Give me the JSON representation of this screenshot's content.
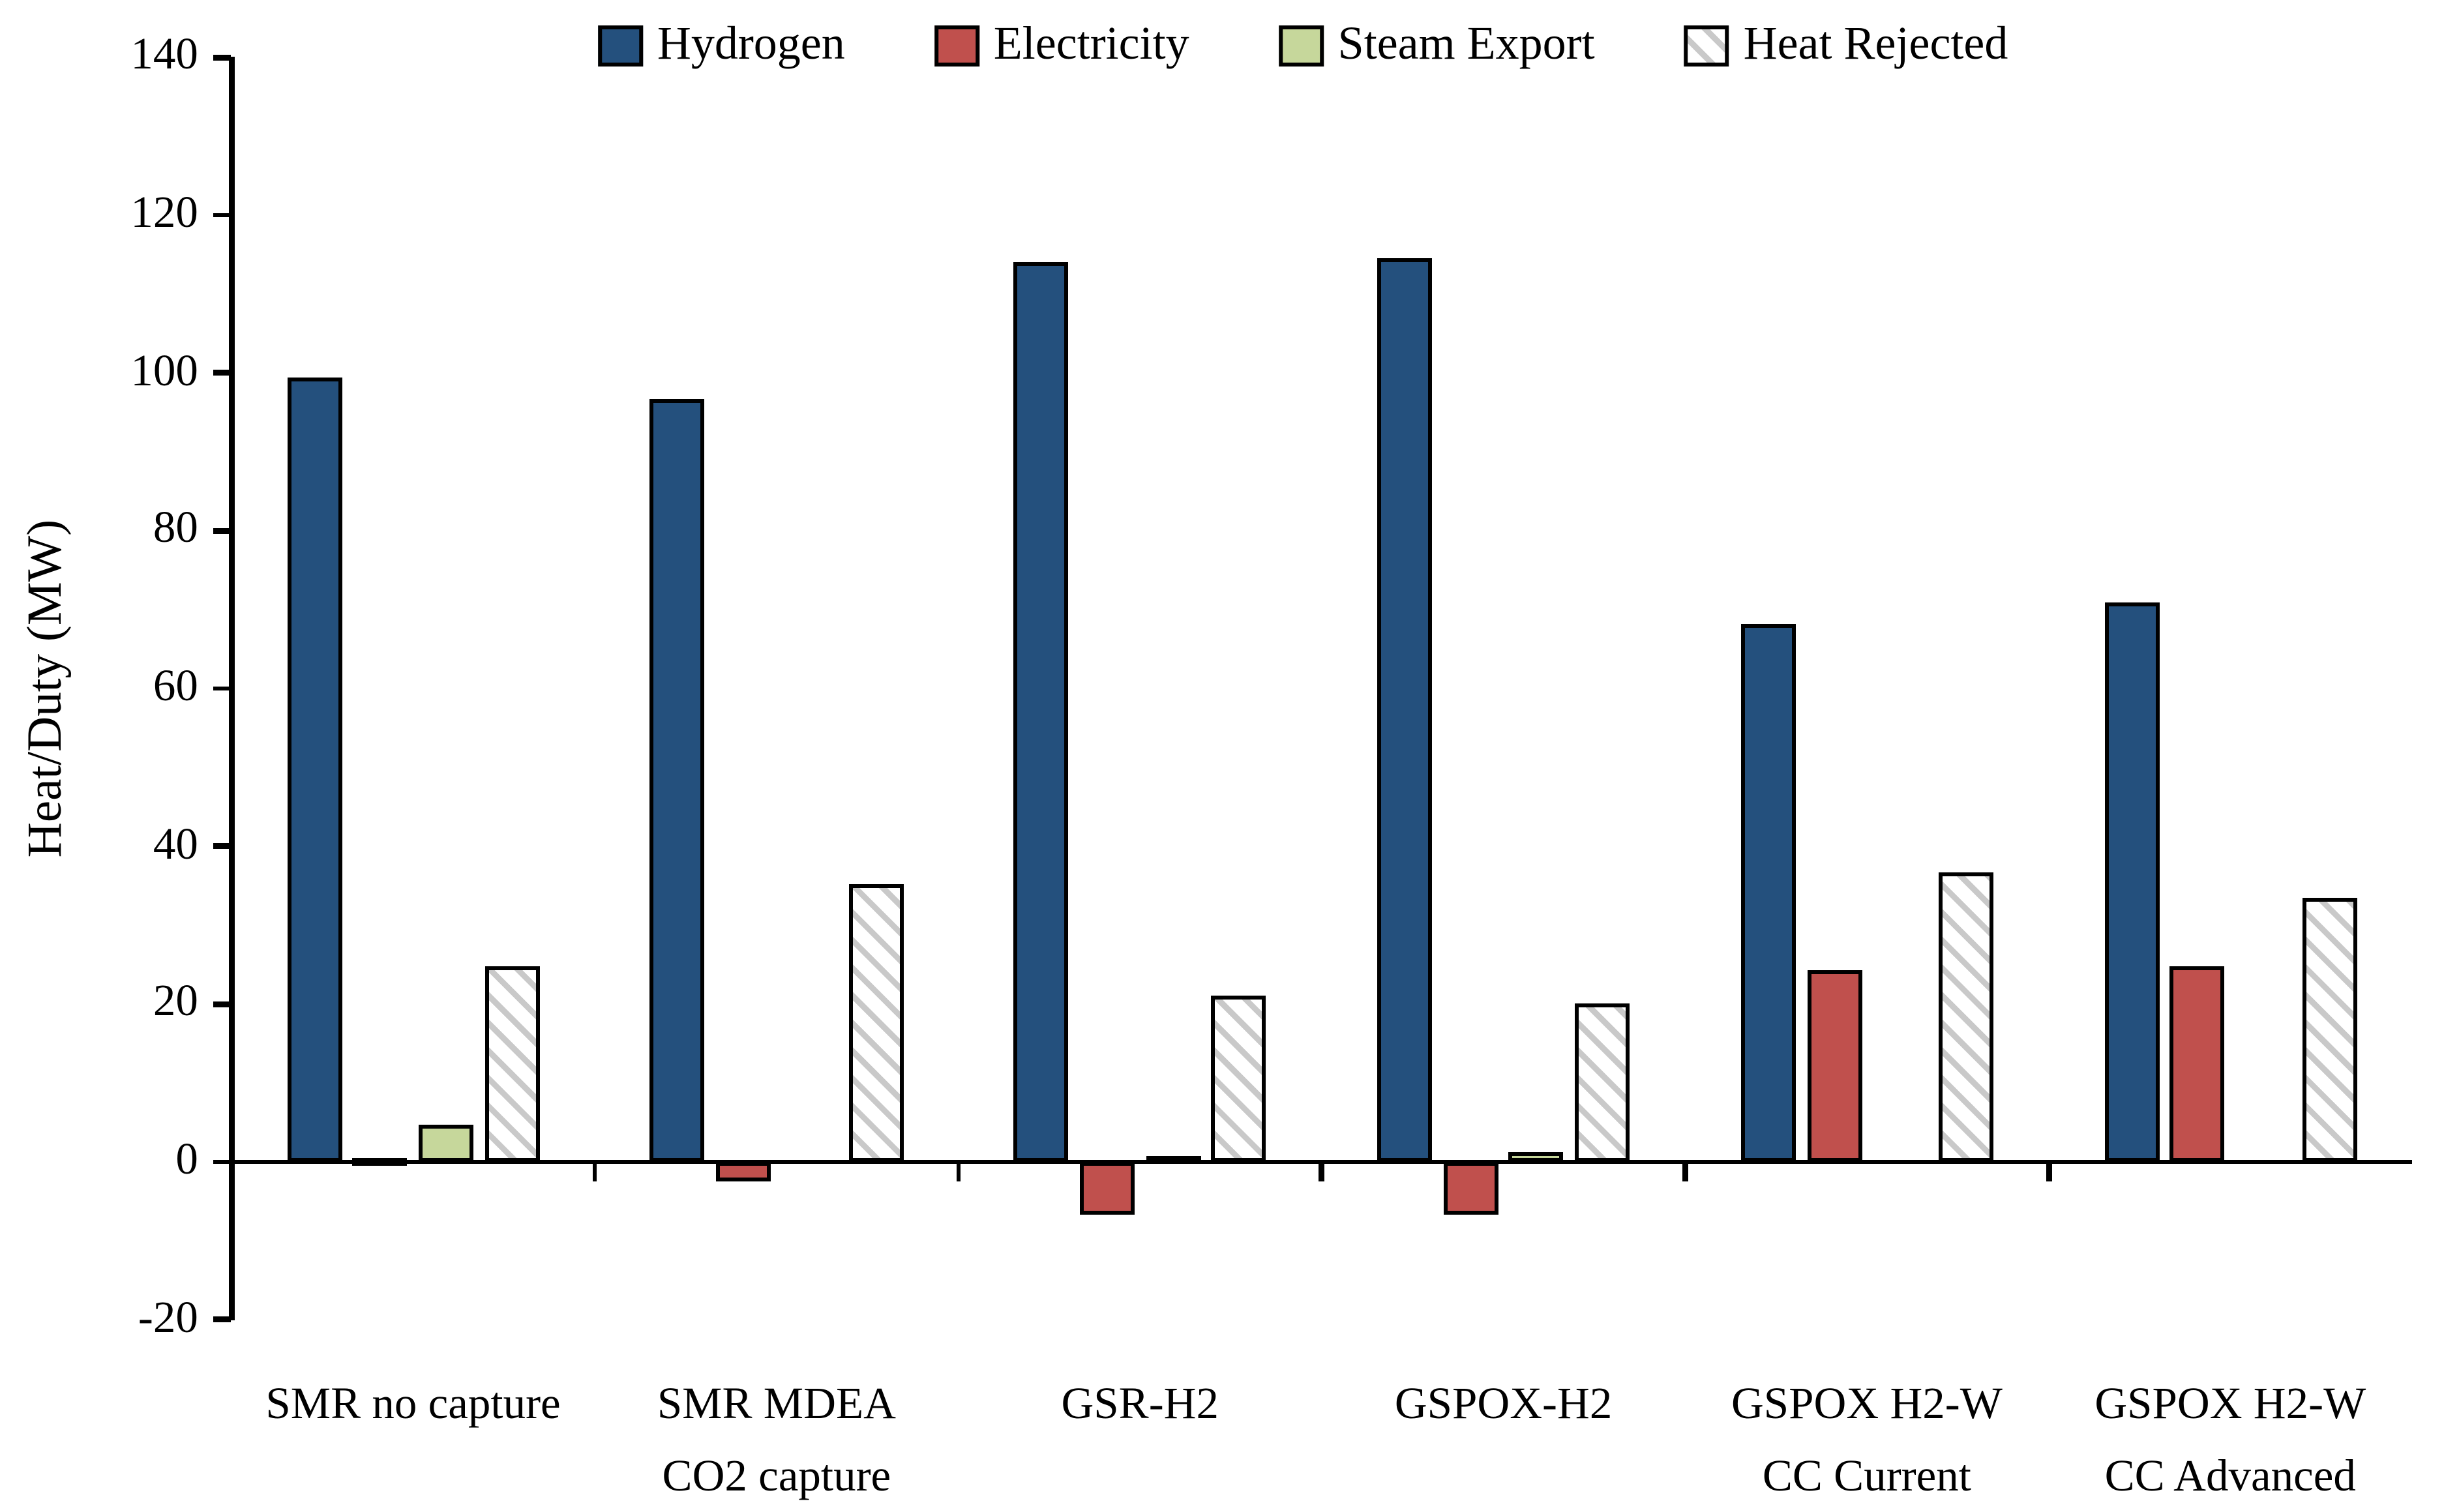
{
  "chart_data": {
    "type": "bar",
    "title": "",
    "ylabel": "Heat/Duty (MW)",
    "xlabel": "",
    "ylim": [
      -20,
      140
    ],
    "ytick_step": 20,
    "yticks": [
      140,
      120,
      100,
      80,
      60,
      40,
      20,
      0,
      -20
    ],
    "grid": false,
    "legend_position": "top",
    "categories": [
      [
        "SMR no capture"
      ],
      [
        "SMR MDEA",
        "CO2 capture"
      ],
      [
        "GSR-H2"
      ],
      [
        "GSPOX-H2"
      ],
      [
        "GSPOX H2-W",
        "CC Current"
      ],
      [
        "GSPOX H2-W",
        "CC Advanced"
      ]
    ],
    "series": [
      {
        "name": "Hydrogen",
        "color": "#24507D",
        "pattern": "solid",
        "values": [
          99.4,
          96.6,
          114.0,
          114.5,
          68.2,
          70.8
        ]
      },
      {
        "name": "Electricity",
        "color": "#C0504D",
        "pattern": "solid",
        "values": [
          0.3,
          -2.5,
          -6.7,
          -6.7,
          24.2,
          24.7
        ]
      },
      {
        "name": "Steam Export",
        "color": "#C6D79B",
        "pattern": "solid",
        "values": [
          4.8,
          0,
          0.8,
          1.2,
          0,
          0
        ]
      },
      {
        "name": "Heat Rejected",
        "color": "#FFFFFF",
        "pattern": "diagonal-hatch",
        "values": [
          24.7,
          35.1,
          21.0,
          20.0,
          36.6,
          33.4
        ]
      }
    ],
    "colors": {
      "axis": "#000000",
      "bar_border": "#000000",
      "hatch_stripe": "#c9c9c9"
    }
  }
}
